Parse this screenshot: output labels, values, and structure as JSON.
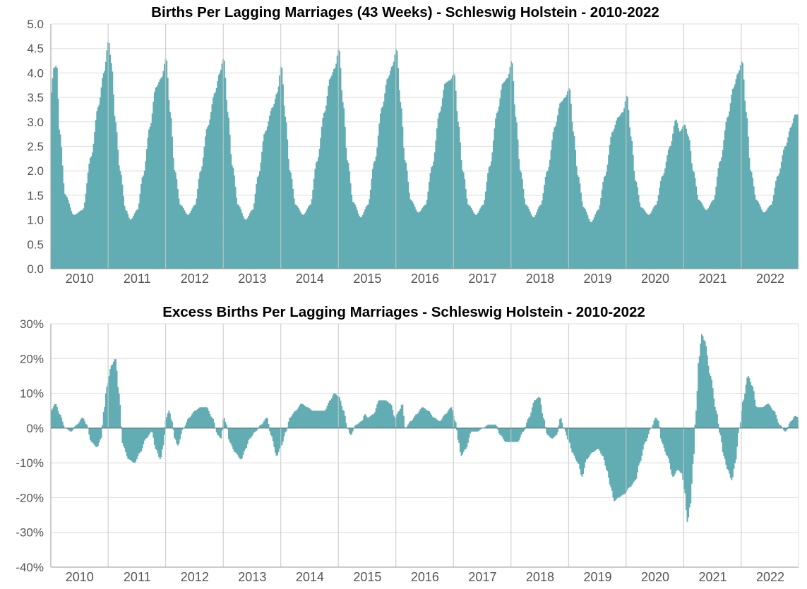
{
  "colors": {
    "bar": "#62adb3",
    "grid": "#dcdcdc",
    "year_line": "#c8c8c8",
    "axis": "#9a9a9a",
    "zero_line": "#55777a"
  },
  "chart_data": [
    {
      "type": "bar",
      "title": "Births Per Lagging Marriages (43 Weeks) - Schleswig Holstein - 2010-2022",
      "xlabel": "",
      "ylabel": "",
      "ylim": [
        0,
        5
      ],
      "y_ticks": [
        "0.0",
        "0.5",
        "1.0",
        "1.5",
        "2.0",
        "2.5",
        "3.0",
        "3.5",
        "4.0",
        "4.5",
        "5.0"
      ],
      "x_ticks": [
        "2010",
        "2011",
        "2012",
        "2013",
        "2014",
        "2015",
        "2016",
        "2017",
        "2018",
        "2019",
        "2020",
        "2021",
        "2022"
      ],
      "grid": true,
      "series_note_x": "weekly values, anchor points as [year-fraction, value]",
      "anchors": [
        [
          2010.0,
          3.55
        ],
        [
          2010.05,
          4.1
        ],
        [
          2010.1,
          4.15
        ],
        [
          2010.15,
          2.8
        ],
        [
          2010.25,
          1.5
        ],
        [
          2010.4,
          1.1
        ],
        [
          2010.55,
          1.2
        ],
        [
          2010.7,
          2.3
        ],
        [
          2010.82,
          3.3
        ],
        [
          2010.92,
          4.0
        ],
        [
          2011.0,
          4.65
        ],
        [
          2011.05,
          4.2
        ],
        [
          2011.12,
          3.0
        ],
        [
          2011.2,
          2.0
        ],
        [
          2011.3,
          1.2
        ],
        [
          2011.38,
          1.0
        ],
        [
          2011.5,
          1.2
        ],
        [
          2011.6,
          1.9
        ],
        [
          2011.72,
          2.9
        ],
        [
          2011.82,
          3.7
        ],
        [
          2011.92,
          3.9
        ],
        [
          2012.0,
          4.3
        ],
        [
          2012.07,
          3.2
        ],
        [
          2012.15,
          2.0
        ],
        [
          2012.25,
          1.3
        ],
        [
          2012.38,
          1.1
        ],
        [
          2012.5,
          1.3
        ],
        [
          2012.6,
          2.0
        ],
        [
          2012.72,
          2.9
        ],
        [
          2012.85,
          3.6
        ],
        [
          2012.93,
          4.0
        ],
        [
          2013.0,
          4.3
        ],
        [
          2013.07,
          3.2
        ],
        [
          2013.15,
          2.1
        ],
        [
          2013.25,
          1.3
        ],
        [
          2013.38,
          1.0
        ],
        [
          2013.5,
          1.2
        ],
        [
          2013.6,
          1.9
        ],
        [
          2013.72,
          2.8
        ],
        [
          2013.85,
          3.3
        ],
        [
          2013.93,
          3.6
        ],
        [
          2014.0,
          4.15
        ],
        [
          2014.07,
          3.1
        ],
        [
          2014.15,
          2.0
        ],
        [
          2014.25,
          1.3
        ],
        [
          2014.38,
          1.1
        ],
        [
          2014.5,
          1.3
        ],
        [
          2014.62,
          2.2
        ],
        [
          2014.75,
          3.2
        ],
        [
          2014.85,
          3.9
        ],
        [
          2014.93,
          4.1
        ],
        [
          2015.0,
          4.5
        ],
        [
          2015.07,
          3.4
        ],
        [
          2015.15,
          2.2
        ],
        [
          2015.25,
          1.35
        ],
        [
          2015.38,
          1.05
        ],
        [
          2015.5,
          1.3
        ],
        [
          2015.62,
          2.2
        ],
        [
          2015.75,
          3.3
        ],
        [
          2015.85,
          3.9
        ],
        [
          2015.93,
          4.15
        ],
        [
          2016.0,
          4.5
        ],
        [
          2016.07,
          3.4
        ],
        [
          2016.15,
          2.2
        ],
        [
          2016.25,
          1.4
        ],
        [
          2016.38,
          1.15
        ],
        [
          2016.5,
          1.3
        ],
        [
          2016.62,
          2.1
        ],
        [
          2016.75,
          3.2
        ],
        [
          2016.85,
          3.8
        ],
        [
          2016.93,
          3.85
        ],
        [
          2017.0,
          4.0
        ],
        [
          2017.07,
          3.0
        ],
        [
          2017.15,
          2.0
        ],
        [
          2017.25,
          1.3
        ],
        [
          2017.38,
          1.1
        ],
        [
          2017.5,
          1.3
        ],
        [
          2017.62,
          2.1
        ],
        [
          2017.75,
          3.2
        ],
        [
          2017.85,
          3.8
        ],
        [
          2017.93,
          3.9
        ],
        [
          2018.0,
          4.25
        ],
        [
          2018.07,
          3.1
        ],
        [
          2018.15,
          2.0
        ],
        [
          2018.25,
          1.3
        ],
        [
          2018.38,
          1.05
        ],
        [
          2018.5,
          1.3
        ],
        [
          2018.62,
          2.0
        ],
        [
          2018.75,
          2.9
        ],
        [
          2018.85,
          3.4
        ],
        [
          2018.93,
          3.5
        ],
        [
          2019.0,
          3.7
        ],
        [
          2019.07,
          2.8
        ],
        [
          2019.15,
          1.9
        ],
        [
          2019.25,
          1.25
        ],
        [
          2019.38,
          0.95
        ],
        [
          2019.5,
          1.2
        ],
        [
          2019.62,
          1.9
        ],
        [
          2019.75,
          2.8
        ],
        [
          2019.85,
          3.1
        ],
        [
          2019.93,
          3.2
        ],
        [
          2020.0,
          3.55
        ],
        [
          2020.07,
          2.7
        ],
        [
          2020.15,
          1.8
        ],
        [
          2020.25,
          1.25
        ],
        [
          2020.38,
          1.1
        ],
        [
          2020.5,
          1.3
        ],
        [
          2020.62,
          1.9
        ],
        [
          2020.75,
          2.5
        ],
        [
          2020.85,
          3.05
        ],
        [
          2020.92,
          2.8
        ],
        [
          2021.0,
          2.95
        ],
        [
          2021.07,
          2.7
        ],
        [
          2021.15,
          2.0
        ],
        [
          2021.25,
          1.4
        ],
        [
          2021.38,
          1.2
        ],
        [
          2021.5,
          1.4
        ],
        [
          2021.62,
          2.2
        ],
        [
          2021.75,
          3.1
        ],
        [
          2021.85,
          3.7
        ],
        [
          2021.93,
          4.0
        ],
        [
          2022.0,
          4.25
        ],
        [
          2022.07,
          3.2
        ],
        [
          2022.15,
          2.0
        ],
        [
          2022.25,
          1.4
        ],
        [
          2022.38,
          1.15
        ],
        [
          2022.5,
          1.3
        ],
        [
          2022.62,
          1.9
        ],
        [
          2022.75,
          2.5
        ],
        [
          2022.85,
          2.9
        ],
        [
          2022.92,
          3.15
        ]
      ]
    },
    {
      "type": "bar",
      "title": "Excess Births Per Lagging Marriages - Schleswig Holstein - 2010-2022",
      "xlabel": "",
      "ylabel": "",
      "ylim": [
        -40,
        30
      ],
      "y_ticks": [
        "-40%",
        "-30%",
        "-20%",
        "-10%",
        "0%",
        "10%",
        "20%",
        "30%"
      ],
      "x_ticks": [
        "2010",
        "2011",
        "2012",
        "2013",
        "2014",
        "2015",
        "2016",
        "2017",
        "2018",
        "2019",
        "2020",
        "2021",
        "2022"
      ],
      "grid": true,
      "anchors": [
        [
          2010.0,
          5
        ],
        [
          2010.08,
          7
        ],
        [
          2010.15,
          4
        ],
        [
          2010.25,
          0
        ],
        [
          2010.35,
          -1
        ],
        [
          2010.45,
          1
        ],
        [
          2010.55,
          3
        ],
        [
          2010.62,
          1
        ],
        [
          2010.7,
          -4
        ],
        [
          2010.8,
          -5.5
        ],
        [
          2010.87,
          -3
        ],
        [
          2010.92,
          5
        ],
        [
          2010.97,
          12
        ],
        [
          2011.05,
          18
        ],
        [
          2011.12,
          20
        ],
        [
          2011.18,
          10
        ],
        [
          2011.25,
          -5
        ],
        [
          2011.35,
          -9
        ],
        [
          2011.45,
          -10
        ],
        [
          2011.55,
          -7
        ],
        [
          2011.65,
          -3
        ],
        [
          2011.75,
          -1
        ],
        [
          2011.82,
          -6
        ],
        [
          2011.9,
          -9
        ],
        [
          2011.95,
          -5
        ],
        [
          2012.0,
          3
        ],
        [
          2012.05,
          5
        ],
        [
          2012.1,
          2
        ],
        [
          2012.15,
          -3
        ],
        [
          2012.2,
          -5
        ],
        [
          2012.3,
          0
        ],
        [
          2012.4,
          3
        ],
        [
          2012.5,
          5
        ],
        [
          2012.6,
          6
        ],
        [
          2012.7,
          6
        ],
        [
          2012.8,
          3
        ],
        [
          2012.9,
          -2
        ],
        [
          2012.95,
          -3
        ],
        [
          2013.0,
          3
        ],
        [
          2013.05,
          1
        ],
        [
          2013.1,
          -4
        ],
        [
          2013.2,
          -7
        ],
        [
          2013.3,
          -9
        ],
        [
          2013.38,
          -6
        ],
        [
          2013.45,
          -3
        ],
        [
          2013.55,
          -1
        ],
        [
          2013.65,
          1
        ],
        [
          2013.75,
          3
        ],
        [
          2013.82,
          -2
        ],
        [
          2013.92,
          -8
        ],
        [
          2014.0,
          -5
        ],
        [
          2014.08,
          -1
        ],
        [
          2014.15,
          3
        ],
        [
          2014.25,
          5
        ],
        [
          2014.35,
          7
        ],
        [
          2014.45,
          6
        ],
        [
          2014.55,
          5
        ],
        [
          2014.65,
          5
        ],
        [
          2014.75,
          5
        ],
        [
          2014.85,
          8
        ],
        [
          2014.92,
          10
        ],
        [
          2015.0,
          9
        ],
        [
          2015.08,
          5
        ],
        [
          2015.15,
          0
        ],
        [
          2015.2,
          -2
        ],
        [
          2015.3,
          1
        ],
        [
          2015.4,
          2
        ],
        [
          2015.45,
          4
        ],
        [
          2015.5,
          3
        ],
        [
          2015.6,
          4
        ],
        [
          2015.7,
          8
        ],
        [
          2015.8,
          8
        ],
        [
          2015.9,
          7
        ],
        [
          2015.97,
          3
        ],
        [
          2016.05,
          5
        ],
        [
          2016.1,
          7
        ],
        [
          2016.15,
          0
        ],
        [
          2016.25,
          2
        ],
        [
          2016.35,
          4
        ],
        [
          2016.45,
          6
        ],
        [
          2016.55,
          5
        ],
        [
          2016.65,
          3
        ],
        [
          2016.75,
          2
        ],
        [
          2016.85,
          4
        ],
        [
          2016.95,
          6
        ],
        [
          2017.02,
          2
        ],
        [
          2017.08,
          -4
        ],
        [
          2017.12,
          -8
        ],
        [
          2017.2,
          -6
        ],
        [
          2017.3,
          -1
        ],
        [
          2017.4,
          -1
        ],
        [
          2017.5,
          0
        ],
        [
          2017.6,
          1
        ],
        [
          2017.72,
          1
        ],
        [
          2017.8,
          -2
        ],
        [
          2017.9,
          -4
        ],
        [
          2018.0,
          -4
        ],
        [
          2018.1,
          -4
        ],
        [
          2018.2,
          -1
        ],
        [
          2018.3,
          3
        ],
        [
          2018.4,
          8
        ],
        [
          2018.48,
          9
        ],
        [
          2018.55,
          3
        ],
        [
          2018.62,
          -2
        ],
        [
          2018.7,
          -3
        ],
        [
          2018.78,
          -2
        ],
        [
          2018.85,
          3
        ],
        [
          2018.9,
          0
        ],
        [
          2019.0,
          -4
        ],
        [
          2019.05,
          -7
        ],
        [
          2019.15,
          -10
        ],
        [
          2019.22,
          -14
        ],
        [
          2019.3,
          -9
        ],
        [
          2019.4,
          -7
        ],
        [
          2019.5,
          -6
        ],
        [
          2019.58,
          -8
        ],
        [
          2019.65,
          -12
        ],
        [
          2019.72,
          -17
        ],
        [
          2019.78,
          -21
        ],
        [
          2019.85,
          -20
        ],
        [
          2019.95,
          -19
        ],
        [
          2020.05,
          -17
        ],
        [
          2020.15,
          -15
        ],
        [
          2020.22,
          -10
        ],
        [
          2020.32,
          -4
        ],
        [
          2020.42,
          0
        ],
        [
          2020.5,
          3
        ],
        [
          2020.55,
          2
        ],
        [
          2020.6,
          -4
        ],
        [
          2020.7,
          -8
        ],
        [
          2020.8,
          -14
        ],
        [
          2020.88,
          -12
        ],
        [
          2020.95,
          -13
        ],
        [
          2021.0,
          -18
        ],
        [
          2021.05,
          -27
        ],
        [
          2021.1,
          -22
        ],
        [
          2021.15,
          -10
        ],
        [
          2021.2,
          5
        ],
        [
          2021.25,
          20
        ],
        [
          2021.3,
          27
        ],
        [
          2021.35,
          25
        ],
        [
          2021.45,
          15
        ],
        [
          2021.55,
          5
        ],
        [
          2021.62,
          -2
        ],
        [
          2021.68,
          -8
        ],
        [
          2021.75,
          -12
        ],
        [
          2021.82,
          -15
        ],
        [
          2021.88,
          -10
        ],
        [
          2021.95,
          0
        ],
        [
          2022.02,
          8
        ],
        [
          2022.1,
          15
        ],
        [
          2022.18,
          12
        ],
        [
          2022.25,
          6
        ],
        [
          2022.35,
          6
        ],
        [
          2022.45,
          7
        ],
        [
          2022.55,
          5
        ],
        [
          2022.65,
          1
        ],
        [
          2022.75,
          -1
        ],
        [
          2022.85,
          2
        ],
        [
          2022.92,
          3.5
        ],
        [
          2022.98,
          3
        ]
      ]
    }
  ]
}
